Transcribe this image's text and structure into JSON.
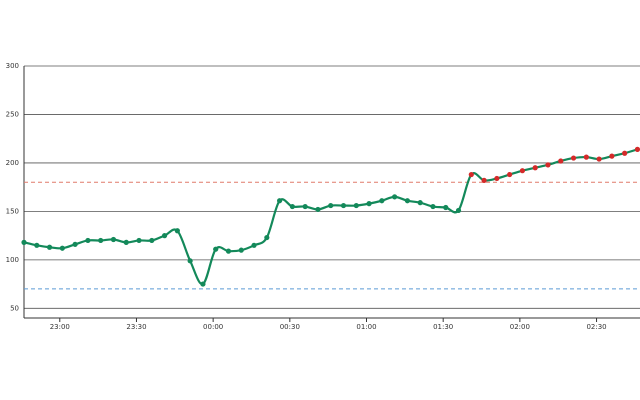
{
  "chart_data": {
    "type": "line",
    "x": [
      1366,
      1371,
      1376,
      1381,
      1386,
      1391,
      1396,
      1401,
      1406,
      1411,
      1416,
      1421,
      1426,
      1431,
      1436,
      1441,
      1446,
      1451,
      1456,
      1461,
      1466,
      1471,
      1476,
      1481,
      1486,
      1491,
      1496,
      1501,
      1506,
      1511,
      1516,
      1521,
      1526,
      1531,
      1536,
      1541,
      1546,
      1551,
      1556,
      1561,
      1566,
      1571,
      1576,
      1581,
      1586,
      1591,
      1596,
      1601,
      1606
    ],
    "series": [
      {
        "color": "#13895a",
        "high_color": "#d42a2a",
        "values": [
          118,
          115,
          113,
          112,
          116,
          120,
          120,
          121,
          118,
          120,
          120,
          125,
          130,
          99,
          75,
          111,
          109,
          110,
          115,
          123,
          161,
          155,
          155,
          152,
          156,
          156,
          156,
          158,
          161,
          165,
          161,
          159,
          155,
          154,
          151,
          188,
          182,
          184,
          188,
          192,
          195,
          198,
          202,
          205,
          206,
          204,
          207,
          210,
          214
        ]
      }
    ],
    "thresholds": [
      {
        "value": 180,
        "color": "#e07a6a"
      },
      {
        "value": 70,
        "color": "#5b9bd5"
      }
    ],
    "xlim": [
      1366,
      1607
    ],
    "ylim": [
      40,
      300
    ],
    "yticks": [
      50,
      100,
      150,
      200,
      250,
      300
    ],
    "xticks": [
      {
        "value": 1380,
        "label": "23:00"
      },
      {
        "value": 1410,
        "label": "23:30"
      },
      {
        "value": 1440,
        "label": "00:00"
      },
      {
        "value": 1470,
        "label": "00:30"
      },
      {
        "value": 1500,
        "label": "01:00"
      },
      {
        "value": 1530,
        "label": "01:30"
      },
      {
        "value": 1560,
        "label": "02:00"
      },
      {
        "value": 1590,
        "label": "02:30"
      }
    ],
    "grid": true
  }
}
